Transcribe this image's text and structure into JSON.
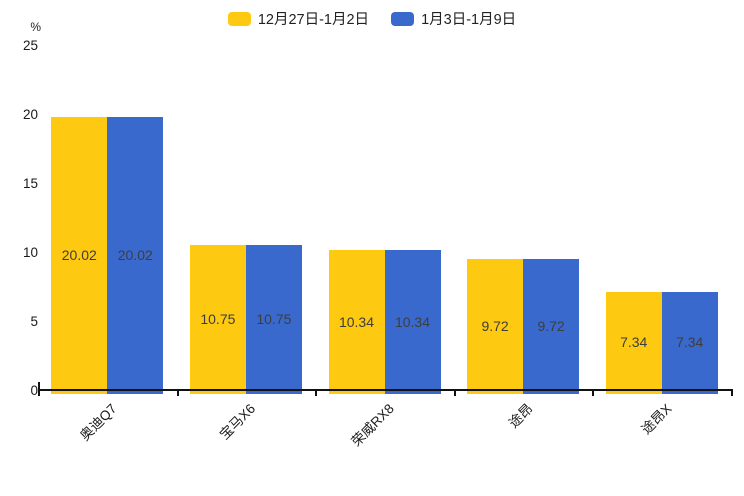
{
  "colors": {
    "series1": "#FDC911",
    "series2": "#3A69CE",
    "axis": "#111111",
    "text": "#1a1a1a",
    "value_label": "#3d3d3d"
  },
  "legend": {
    "items": [
      {
        "label": "12月27日-1月2日",
        "color": "#FDC911"
      },
      {
        "label": "1月3日-1月9日",
        "color": "#3A69CE"
      }
    ]
  },
  "y_axis": {
    "unit": "%",
    "ticks": [
      "0",
      "5",
      "10",
      "15",
      "20",
      "25"
    ]
  },
  "chart_data": {
    "type": "bar",
    "title": "",
    "categories": [
      "奥迪Q7",
      "宝马X6",
      "荣威RX8",
      "途昂",
      "途昂X"
    ],
    "series": [
      {
        "name": "12月27日-1月2日",
        "color": "#FDC911",
        "values": [
          20.02,
          10.75,
          10.34,
          9.72,
          7.34
        ]
      },
      {
        "name": "1月3日-1月9日",
        "color": "#3A69CE",
        "values": [
          20.02,
          10.75,
          10.34,
          9.72,
          7.34
        ]
      }
    ],
    "value_labels": [
      [
        "20.02",
        "10.75",
        "10.34",
        "9.72",
        "7.34"
      ],
      [
        "20.02",
        "10.75",
        "10.34",
        "9.72",
        "7.34"
      ]
    ],
    "xlabel": "",
    "ylabel": "%",
    "ylim": [
      0,
      25
    ],
    "yticks": [
      0,
      5,
      10,
      15,
      20,
      25
    ],
    "grid": false,
    "legend_position": "top",
    "bar_label_position": "middle-inside"
  }
}
